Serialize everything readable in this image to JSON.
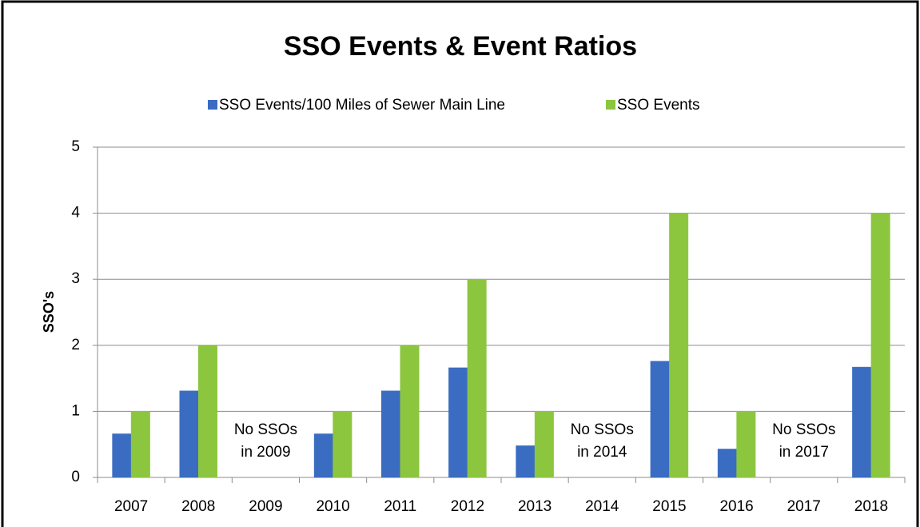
{
  "chart_data": {
    "type": "bar",
    "title": "SSO Events & Event Ratios",
    "y_label": "SSO's",
    "categories": [
      "2007",
      "2008",
      "2009",
      "2010",
      "2011",
      "2012",
      "2013",
      "2014",
      "2015",
      "2016",
      "2017",
      "2018"
    ],
    "series": [
      {
        "name": "SSO Events/100 Miles of Sewer Main Line",
        "color": "#3a6cc2",
        "values": [
          0.66,
          1.31,
          0,
          0.66,
          1.31,
          1.66,
          0.48,
          0,
          1.76,
          0.43,
          0,
          1.67
        ]
      },
      {
        "name": "SSO Events",
        "color": "#8cc63e",
        "values": [
          1,
          2,
          0,
          1,
          2,
          3,
          1,
          0,
          4,
          1,
          0,
          4
        ]
      }
    ],
    "annotations": [
      {
        "category": "2009",
        "lines": [
          "No SSOs",
          "in 2009"
        ]
      },
      {
        "category": "2014",
        "lines": [
          "No SSOs",
          "in 2014"
        ]
      },
      {
        "category": "2017",
        "lines": [
          "No SSOs",
          "in 2017"
        ]
      }
    ],
    "ylim": [
      0,
      5
    ],
    "yticks": [
      0,
      1,
      2,
      3,
      4,
      5
    ],
    "grid": true,
    "legend": "top"
  }
}
